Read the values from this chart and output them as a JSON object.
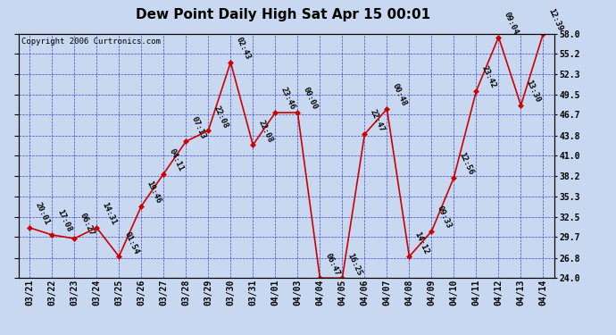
{
  "title": "Dew Point Daily High Sat Apr 15 00:01",
  "copyright": "Copyright 2006 Curtronics.com",
  "bg_color": "#c8d8f0",
  "line_color": "#cc0000",
  "marker_color": "#cc0000",
  "grid_color": "#3333cc",
  "dates": [
    "03/21",
    "03/22",
    "03/23",
    "03/24",
    "03/25",
    "03/26",
    "03/27",
    "03/28",
    "03/29",
    "03/30",
    "03/31",
    "04/01",
    "04/03",
    "04/04",
    "04/05",
    "04/06",
    "04/07",
    "04/08",
    "04/09",
    "04/10",
    "04/11",
    "04/12",
    "04/13",
    "04/14"
  ],
  "values": [
    31.0,
    30.0,
    29.5,
    31.0,
    27.0,
    34.0,
    38.5,
    43.0,
    44.5,
    54.0,
    42.5,
    47.0,
    47.0,
    24.0,
    24.0,
    44.0,
    47.5,
    27.0,
    30.5,
    38.0,
    50.0,
    57.5,
    48.0,
    58.0
  ],
  "point_labels": [
    "20:01",
    "17:08",
    "06:27",
    "14:31",
    "01:54",
    "19:46",
    "04:11",
    "07:13",
    "22:08",
    "02:43",
    "22:08",
    "23:46",
    "00:00",
    "06:47",
    "16:25",
    "22:47",
    "00:48",
    "14:12",
    "09:33",
    "12:56",
    "23:42",
    "09:04",
    "13:30",
    "12:39"
  ],
  "ylim": [
    24.0,
    58.0
  ],
  "yticks": [
    24.0,
    26.8,
    29.7,
    32.5,
    35.3,
    38.2,
    41.0,
    43.8,
    46.7,
    49.5,
    52.3,
    55.2,
    58.0
  ],
  "title_fontsize": 11,
  "tick_fontsize": 7,
  "label_fontsize": 6.5,
  "copyright_fontsize": 6.5
}
